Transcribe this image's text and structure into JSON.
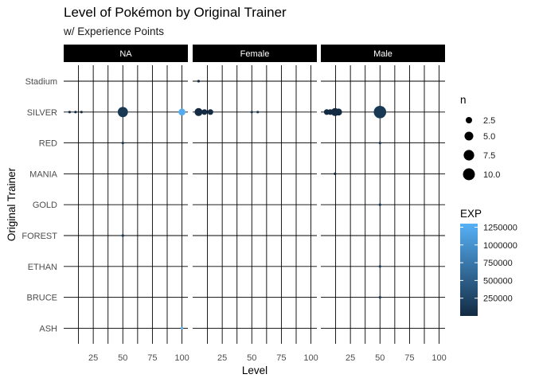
{
  "chart_data": {
    "type": "scatter",
    "title": "Level of Pokémon by Original Trainer",
    "subtitle": "w/ Experience Points",
    "xlabel": "Level",
    "ylabel": "Original Trainer",
    "xlim": [
      0,
      105
    ],
    "xticks": [
      25,
      50,
      75,
      100
    ],
    "panels": [
      "NA",
      "Female",
      "Male"
    ],
    "trainers": [
      "Stadium",
      "SILVER",
      "RED",
      "MANIA",
      "GOLD",
      "FOREST",
      "ETHAN",
      "BRUCE",
      "ASH"
    ],
    "grid": true,
    "size_legend": {
      "title": "n",
      "values": [
        2.5,
        5.0,
        7.5,
        10.0
      ],
      "labels": [
        "2.5",
        "5.0",
        "7.5",
        "10.0"
      ]
    },
    "color_legend": {
      "title": "EXP",
      "min": 0,
      "max": 1300000,
      "low_color": "#132B43",
      "high_color": "#56B1F7",
      "ticks": [
        250000,
        500000,
        750000,
        1000000,
        1250000
      ],
      "labels": [
        "250000",
        "500000",
        "750000",
        "1000000",
        "1250000"
      ]
    },
    "points": [
      {
        "panel": "NA",
        "trainer": "SILVER",
        "level": 5,
        "n": 1,
        "exp": 150
      },
      {
        "panel": "NA",
        "trainer": "SILVER",
        "level": 10,
        "n": 1,
        "exp": 1000
      },
      {
        "panel": "NA",
        "trainer": "SILVER",
        "level": 15,
        "n": 1,
        "exp": 3400
      },
      {
        "panel": "NA",
        "trainer": "SILVER",
        "level": 50,
        "n": 7,
        "exp": 125000
      },
      {
        "panel": "NA",
        "trainer": "SILVER",
        "level": 100,
        "n": 3,
        "exp": 1250000
      },
      {
        "panel": "NA",
        "trainer": "RED",
        "level": 50,
        "n": 1,
        "exp": 125000
      },
      {
        "panel": "NA",
        "trainer": "FOREST",
        "level": 50,
        "n": 1,
        "exp": 125000
      },
      {
        "panel": "NA",
        "trainer": "ASH",
        "level": 100,
        "n": 1,
        "exp": 1250000
      },
      {
        "panel": "Female",
        "trainer": "Stadium",
        "level": 5,
        "n": 1,
        "exp": 150
      },
      {
        "panel": "Female",
        "trainer": "SILVER",
        "level": 5,
        "n": 4,
        "exp": 150
      },
      {
        "panel": "Female",
        "trainer": "SILVER",
        "level": 10,
        "n": 2,
        "exp": 1000
      },
      {
        "panel": "Female",
        "trainer": "SILVER",
        "level": 15,
        "n": 2,
        "exp": 3400
      },
      {
        "panel": "Female",
        "trainer": "SILVER",
        "level": 50,
        "n": 1,
        "exp": 125000
      },
      {
        "panel": "Female",
        "trainer": "SILVER",
        "level": 55,
        "n": 1,
        "exp": 166000
      },
      {
        "panel": "Male",
        "trainer": "SILVER",
        "level": 5,
        "n": 2,
        "exp": 150
      },
      {
        "panel": "Male",
        "trainer": "SILVER",
        "level": 8,
        "n": 2,
        "exp": 500
      },
      {
        "panel": "Male",
        "trainer": "SILVER",
        "level": 12,
        "n": 4,
        "exp": 1700
      },
      {
        "panel": "Male",
        "trainer": "SILVER",
        "level": 15,
        "n": 3,
        "exp": 3400
      },
      {
        "panel": "Male",
        "trainer": "SILVER",
        "level": 50,
        "n": 11,
        "exp": 125000
      },
      {
        "panel": "Male",
        "trainer": "RED",
        "level": 50,
        "n": 1,
        "exp": 125000
      },
      {
        "panel": "Male",
        "trainer": "MANIA",
        "level": 12,
        "n": 1,
        "exp": 1700
      },
      {
        "panel": "Male",
        "trainer": "GOLD",
        "level": 50,
        "n": 1,
        "exp": 125000
      },
      {
        "panel": "Male",
        "trainer": "ETHAN",
        "level": 50,
        "n": 1,
        "exp": 125000
      },
      {
        "panel": "Male",
        "trainer": "BRUCE",
        "level": 50,
        "n": 1,
        "exp": 125000
      }
    ]
  }
}
